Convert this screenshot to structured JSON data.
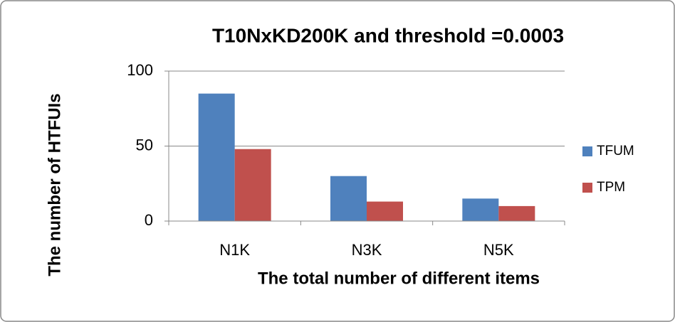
{
  "chart_data": {
    "type": "bar",
    "title": "T10NxKD200K and threshold =0.0003",
    "x_label": "The total number of different items",
    "y_label": "The number of HTFUIs",
    "categories": [
      "N1K",
      "N3K",
      "N5K"
    ],
    "series": [
      {
        "name": "TFUM",
        "color": "#4f81bd",
        "values": [
          85,
          30,
          15
        ]
      },
      {
        "name": "TPM",
        "color": "#c0504d",
        "values": [
          48,
          13,
          10
        ]
      }
    ],
    "ylim": [
      0,
      100
    ],
    "yticks": [
      0,
      50,
      100
    ],
    "grid": true,
    "legend": "right"
  }
}
